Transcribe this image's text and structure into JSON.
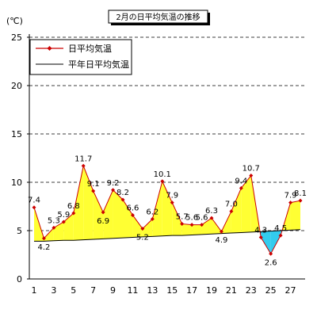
{
  "chart_data": {
    "type": "line",
    "title": "2月の日平均気温の推移",
    "ylabel": "(℃)",
    "xlabel": "",
    "ylim": [
      0,
      25
    ],
    "yticks": [
      0,
      5,
      10,
      15,
      20,
      25
    ],
    "xlim": [
      1,
      28
    ],
    "xticks": [
      1,
      3,
      5,
      7,
      9,
      11,
      13,
      15,
      17,
      19,
      21,
      23,
      25,
      27
    ],
    "x": [
      1,
      2,
      3,
      4,
      5,
      6,
      7,
      8,
      9,
      10,
      11,
      12,
      13,
      14,
      15,
      16,
      17,
      18,
      19,
      20,
      21,
      22,
      23,
      24,
      25,
      26,
      27,
      28
    ],
    "grid": "horizontal",
    "legend_position": "top-left",
    "fill_above_color": "#ffff33",
    "fill_below_color": "#33ccee",
    "series": [
      {
        "name": "日平均気温",
        "color": "#cc0000",
        "marker": "diamond",
        "values": [
          7.4,
          4.2,
          5.3,
          5.9,
          6.8,
          11.7,
          9.1,
          6.9,
          9.2,
          8.2,
          6.6,
          5.2,
          6.2,
          10.1,
          7.9,
          5.7,
          5.6,
          5.6,
          6.3,
          4.9,
          7.0,
          9.4,
          10.7,
          4.3,
          2.6,
          4.5,
          7.9,
          8.1
        ],
        "labels": [
          "7.4",
          "4.2",
          "5.3",
          "5.9",
          "6.8",
          "11.7",
          "9.1",
          "6.9",
          "9.2",
          "8.2",
          "6.6",
          "5.2",
          "6.2",
          "10.1",
          "7.9",
          "5.7",
          "5.6",
          "5.6",
          "6.3",
          "4.9",
          "7.0",
          "9.4",
          "10.7",
          "4.3",
          "2.6",
          "4.5",
          "7.9",
          "8.1"
        ]
      },
      {
        "name": "平年日平均気温",
        "color": "#000000",
        "values": [
          3.9,
          3.9,
          3.95,
          4.0,
          4.0,
          4.05,
          4.1,
          4.15,
          4.2,
          4.25,
          4.3,
          4.35,
          4.4,
          4.45,
          4.5,
          4.5,
          4.55,
          4.6,
          4.65,
          4.7,
          4.75,
          4.8,
          4.85,
          4.9,
          4.95,
          5.0,
          5.05,
          5.1
        ]
      }
    ]
  }
}
